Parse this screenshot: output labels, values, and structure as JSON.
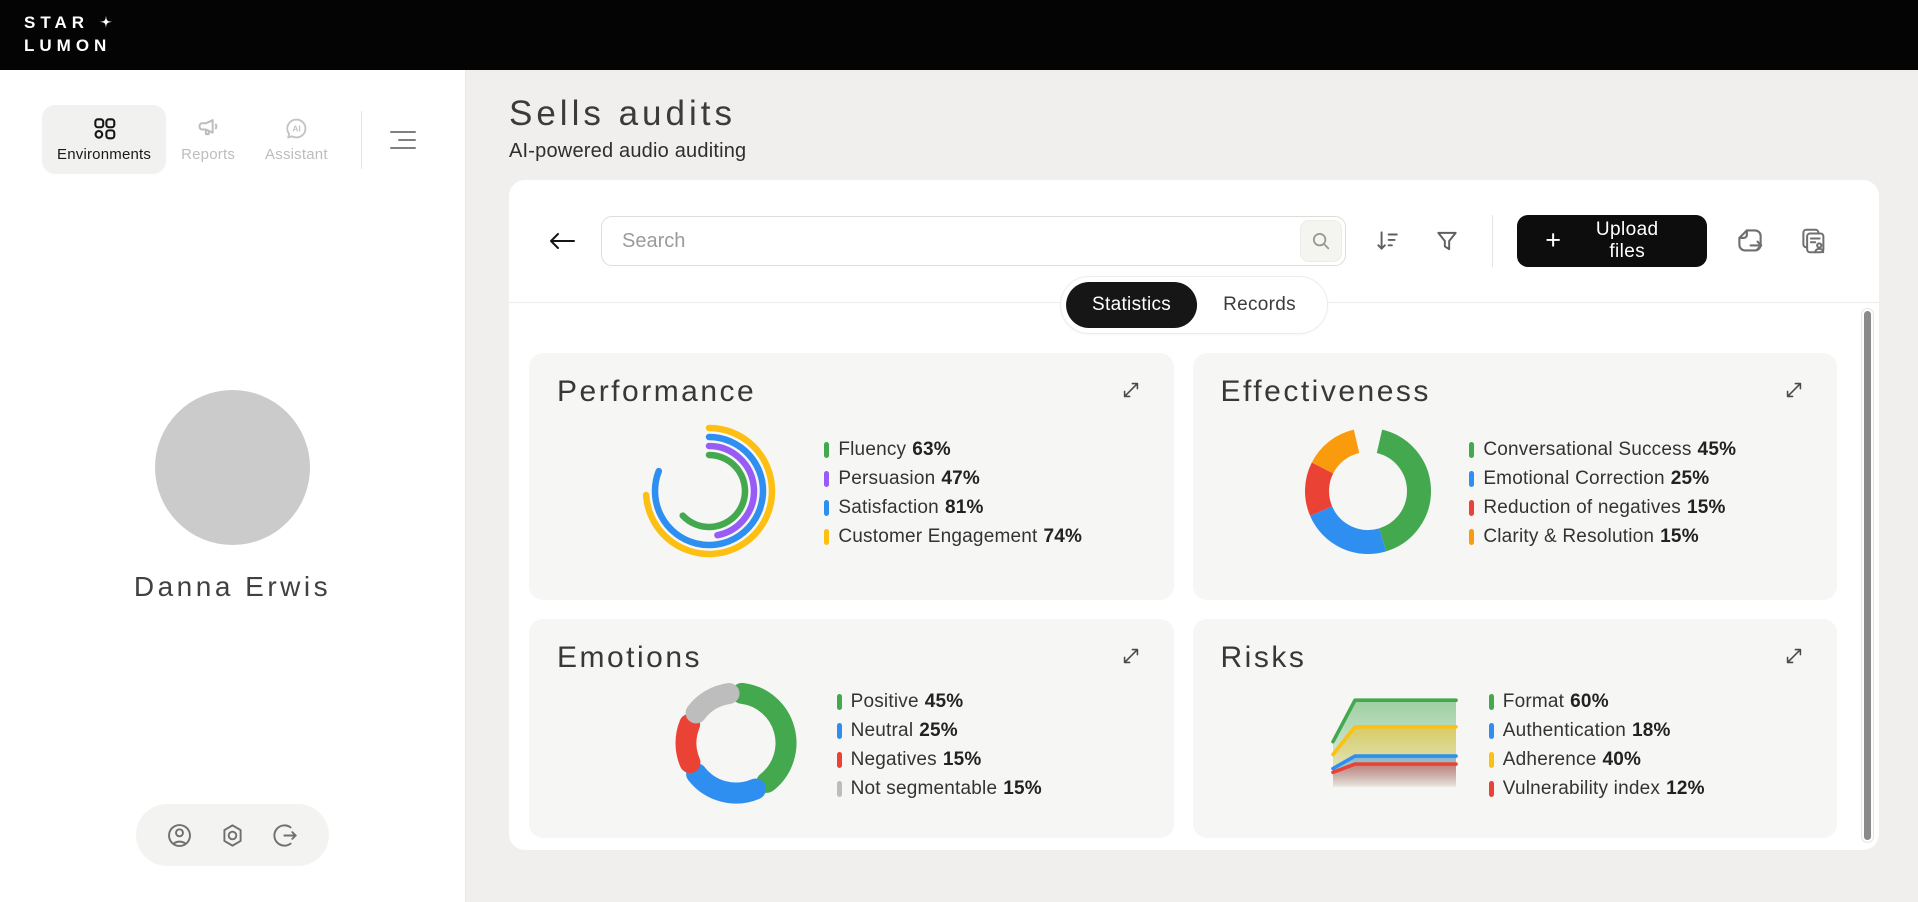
{
  "topbar": {
    "logo_line1": "STAR",
    "logo_line2": "LUMON"
  },
  "sidebar": {
    "nav": [
      {
        "label": "Environments",
        "icon": "grid-icon",
        "active": true
      },
      {
        "label": "Reports",
        "icon": "megaphone-icon",
        "active": false
      },
      {
        "label": "Assistant",
        "icon": "ai-bubble-icon",
        "active": false
      }
    ],
    "user": {
      "name": "Danna Erwis"
    },
    "footer_icons": [
      "account-icon",
      "settings-icon",
      "logout-icon"
    ]
  },
  "header": {
    "title": "Sells audits",
    "subtitle": "AI-powered audio auditing"
  },
  "toolbar": {
    "search_placeholder": "Search",
    "upload_label": "Upload files",
    "upload_plus": "+"
  },
  "tabs": [
    {
      "label": "Statistics",
      "active": true
    },
    {
      "label": "Records",
      "active": false
    }
  ],
  "colors": {
    "accent_black": "#161616",
    "green": "#44A84E",
    "blue": "#2E8FF0",
    "red": "#EA4335",
    "orange": "#F99B0C",
    "yellow": "#FCBF12",
    "purple": "#975CF6",
    "gray": "#BDBDBD"
  },
  "chart_data": [
    {
      "id": "performance",
      "type": "radial-bars",
      "title": "Performance",
      "unit": "%",
      "series": [
        {
          "name": "Fluency",
          "value": 63,
          "color": "#44A84E"
        },
        {
          "name": "Persuasion",
          "value": 47,
          "color": "#975CF6"
        },
        {
          "name": "Satisfaction",
          "value": 81,
          "color": "#2E8FF0"
        },
        {
          "name": "Customer Engagement",
          "value": 74,
          "color": "#FCBF12"
        }
      ]
    },
    {
      "id": "effectiveness",
      "type": "donut",
      "title": "Effectiveness",
      "unit": "%",
      "series": [
        {
          "name": "Conversational Success",
          "value": 45,
          "color": "#44A84E"
        },
        {
          "name": "Emotional Correction",
          "value": 25,
          "color": "#2E8FF0"
        },
        {
          "name": "Reduction of negatives",
          "value": 15,
          "color": "#EA4335"
        },
        {
          "name": "Clarity & Resolution",
          "value": 15,
          "color": "#F99B0C"
        }
      ]
    },
    {
      "id": "emotions",
      "type": "donut-segmented",
      "title": "Emotions",
      "unit": "%",
      "series": [
        {
          "name": "Positive",
          "value": 45,
          "color": "#44A84E"
        },
        {
          "name": "Neutral",
          "value": 25,
          "color": "#2E8FF0"
        },
        {
          "name": "Negatives",
          "value": 15,
          "color": "#EA4335"
        },
        {
          "name": "Not segmentable",
          "value": 15,
          "color": "#BDBDBD"
        }
      ]
    },
    {
      "id": "risks",
      "type": "layered-area",
      "title": "Risks",
      "unit": "%",
      "series": [
        {
          "name": "Format",
          "value": 60,
          "color": "#44A84E"
        },
        {
          "name": "Authentication",
          "value": 18,
          "color": "#2E8FF0"
        },
        {
          "name": "Adherence",
          "value": 40,
          "color": "#FCBF12"
        },
        {
          "name": "Vulnerability index",
          "value": 12,
          "color": "#EA4335"
        }
      ]
    }
  ]
}
